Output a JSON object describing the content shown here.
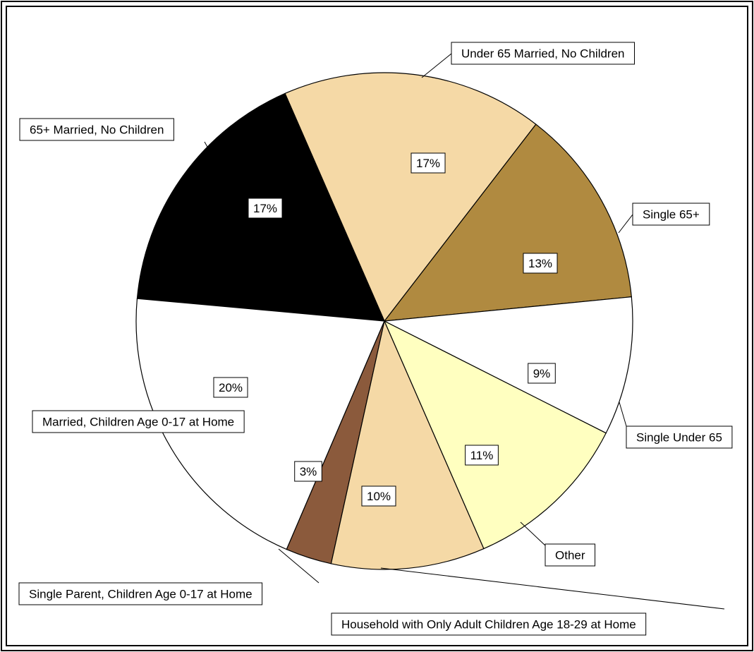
{
  "chart_data": {
    "type": "pie",
    "title": "",
    "slices": [
      {
        "label": "Single 65+",
        "value": 13,
        "value_label": "13%",
        "color": "#B08A40"
      },
      {
        "label": "Under 65 Married, No Children",
        "value": 17,
        "value_label": "17%",
        "color": "#F5D9A6"
      },
      {
        "label": "65+ Married, No Children",
        "value": 17,
        "value_label": "17%",
        "color": "#000000"
      },
      {
        "label": "Married, Children Age 0-17 at Home",
        "value": 20,
        "value_label": "20%",
        "color": "#FFFFFF"
      },
      {
        "label": "Single Parent, Children Age 0-17 at Home",
        "value": 3,
        "value_label": "3%",
        "color": "#8B5A3C"
      },
      {
        "label": "Household with Only Adult Children Age 18-29 at Home",
        "value": 10,
        "value_label": "10%",
        "color": "#F5D9A6"
      },
      {
        "label": "Other",
        "value": 11,
        "value_label": "11%",
        "color": "#FFFFC0"
      },
      {
        "label": "Single Under 65",
        "value": 9,
        "value_label": "9%",
        "color": "#FFFFFF"
      }
    ],
    "legend": "none",
    "labels": "callout boxes with leader lines"
  }
}
